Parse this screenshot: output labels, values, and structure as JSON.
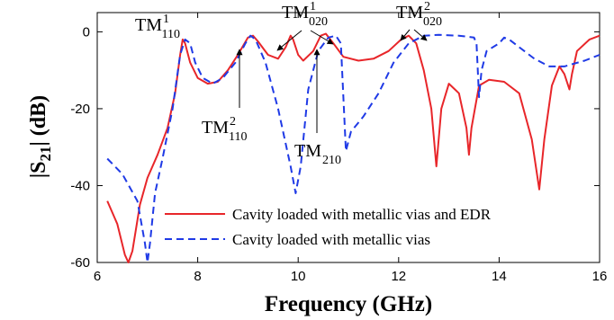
{
  "chart_data": {
    "type": "line",
    "xlabel": "Frequency (GHz)",
    "ylabel_parts": {
      "a": "|S",
      "sub": "21",
      "b": "| (dB)"
    },
    "xlim": [
      6,
      16
    ],
    "ylim": [
      -60,
      5
    ],
    "xticks": [
      6,
      8,
      10,
      12,
      14,
      16
    ],
    "yticks": [
      0,
      -20,
      -40,
      -60
    ],
    "grid": false,
    "legend_position": "bottom-right",
    "series": [
      {
        "name": "Cavity loaded  with metallic vias  and EDR",
        "color": "#e8262a",
        "dash": "solid",
        "points": [
          [
            6.2,
            -44
          ],
          [
            6.4,
            -50
          ],
          [
            6.55,
            -58
          ],
          [
            6.62,
            -60
          ],
          [
            6.7,
            -57
          ],
          [
            6.85,
            -45
          ],
          [
            7.0,
            -38
          ],
          [
            7.2,
            -32
          ],
          [
            7.4,
            -25
          ],
          [
            7.55,
            -16
          ],
          [
            7.65,
            -6
          ],
          [
            7.7,
            -2
          ],
          [
            7.75,
            -3
          ],
          [
            7.85,
            -8
          ],
          [
            8.0,
            -12
          ],
          [
            8.2,
            -13.5
          ],
          [
            8.4,
            -13
          ],
          [
            8.6,
            -10
          ],
          [
            8.8,
            -6
          ],
          [
            9.0,
            -1.5
          ],
          [
            9.1,
            -1
          ],
          [
            9.2,
            -2.5
          ],
          [
            9.4,
            -6
          ],
          [
            9.6,
            -7
          ],
          [
            9.75,
            -4
          ],
          [
            9.85,
            -1
          ],
          [
            9.9,
            -2
          ],
          [
            10.0,
            -6
          ],
          [
            10.1,
            -7.5
          ],
          [
            10.3,
            -5
          ],
          [
            10.45,
            -1
          ],
          [
            10.55,
            -0.5
          ],
          [
            10.7,
            -3
          ],
          [
            10.9,
            -6.5
          ],
          [
            11.2,
            -7.5
          ],
          [
            11.5,
            -7
          ],
          [
            11.8,
            -5
          ],
          [
            12.05,
            -2
          ],
          [
            12.2,
            -1
          ],
          [
            12.35,
            -3
          ],
          [
            12.5,
            -10
          ],
          [
            12.65,
            -20
          ],
          [
            12.75,
            -35
          ],
          [
            12.85,
            -20
          ],
          [
            13.0,
            -13.5
          ],
          [
            13.2,
            -16
          ],
          [
            13.35,
            -25
          ],
          [
            13.4,
            -32
          ],
          [
            13.45,
            -25
          ],
          [
            13.6,
            -14
          ],
          [
            13.8,
            -12.5
          ],
          [
            14.1,
            -13
          ],
          [
            14.4,
            -16
          ],
          [
            14.65,
            -28
          ],
          [
            14.8,
            -41
          ],
          [
            14.9,
            -28
          ],
          [
            15.05,
            -14
          ],
          [
            15.2,
            -9
          ],
          [
            15.3,
            -11
          ],
          [
            15.4,
            -15
          ],
          [
            15.45,
            -11
          ],
          [
            15.55,
            -5
          ],
          [
            15.8,
            -2
          ],
          [
            16.0,
            -1
          ]
        ]
      },
      {
        "name": "Cavity loaded with metallic vias",
        "color": "#1f3ae6",
        "dash": "dashed",
        "points": [
          [
            6.2,
            -33
          ],
          [
            6.5,
            -37
          ],
          [
            6.8,
            -44
          ],
          [
            6.95,
            -55
          ],
          [
            7.0,
            -60
          ],
          [
            7.05,
            -55
          ],
          [
            7.15,
            -42
          ],
          [
            7.3,
            -33
          ],
          [
            7.5,
            -20
          ],
          [
            7.65,
            -6
          ],
          [
            7.75,
            -2
          ],
          [
            7.85,
            -3
          ],
          [
            7.95,
            -8
          ],
          [
            8.1,
            -12
          ],
          [
            8.3,
            -13.5
          ],
          [
            8.5,
            -12
          ],
          [
            8.75,
            -8
          ],
          [
            8.95,
            -3
          ],
          [
            9.05,
            -1
          ],
          [
            9.15,
            -2
          ],
          [
            9.35,
            -8
          ],
          [
            9.6,
            -20
          ],
          [
            9.85,
            -35
          ],
          [
            9.95,
            -42
          ],
          [
            10.05,
            -35
          ],
          [
            10.2,
            -15
          ],
          [
            10.4,
            -5
          ],
          [
            10.6,
            -1.5
          ],
          [
            10.75,
            -1
          ],
          [
            10.85,
            -3
          ],
          [
            10.95,
            -31
          ],
          [
            11.05,
            -26
          ],
          [
            11.3,
            -22
          ],
          [
            11.6,
            -16
          ],
          [
            11.9,
            -8
          ],
          [
            12.2,
            -3
          ],
          [
            12.5,
            -1
          ],
          [
            12.8,
            -0.8
          ],
          [
            13.2,
            -1
          ],
          [
            13.5,
            -1.5
          ],
          [
            13.55,
            -3
          ],
          [
            13.6,
            -17
          ],
          [
            13.65,
            -10
          ],
          [
            13.75,
            -5
          ],
          [
            14.0,
            -3
          ],
          [
            14.1,
            -1.5
          ],
          [
            14.2,
            -2
          ],
          [
            14.4,
            -4
          ],
          [
            14.7,
            -7
          ],
          [
            15.0,
            -9
          ],
          [
            15.3,
            -9
          ],
          [
            15.7,
            -7.5
          ],
          [
            16.0,
            -6
          ]
        ]
      }
    ],
    "annotations": [
      {
        "base": "TM",
        "sup": "1",
        "sub": "110"
      },
      {
        "base": "TM",
        "sup": "1",
        "sub": "020"
      },
      {
        "base": "TM",
        "sup": "2",
        "sub": "020"
      },
      {
        "base": "TM",
        "sup": "2",
        "sub": "110"
      },
      {
        "base": "TM",
        "sup": "",
        "sub": "210"
      }
    ]
  }
}
